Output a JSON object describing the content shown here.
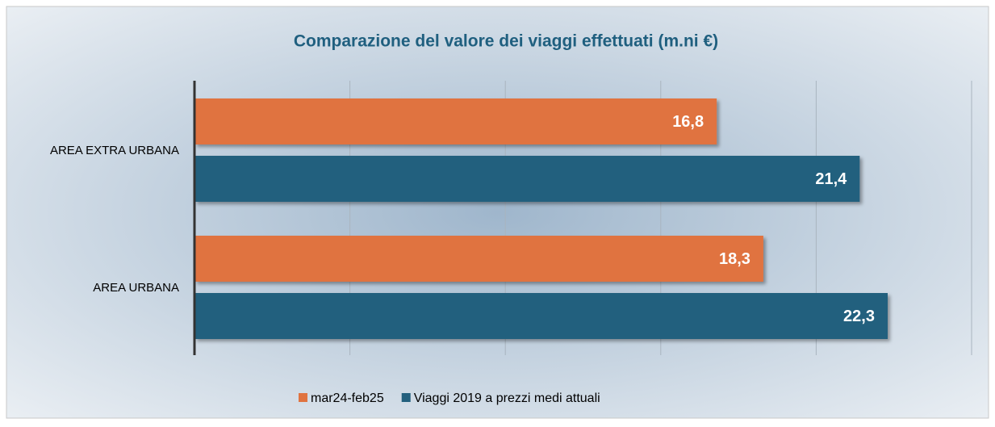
{
  "chart_data": {
    "type": "barh",
    "title": "Comparazione del valore dei viaggi effettuati (m.ni €)",
    "categories": [
      "AREA EXTRA URBANA",
      "AREA URBANA"
    ],
    "series": [
      {
        "name": "mar24-feb25",
        "color": "#e07340",
        "values": [
          16.8,
          18.3
        ],
        "value_labels": [
          "16,8",
          "18,3"
        ]
      },
      {
        "name": "Viaggi 2019 a prezzi medi attuali",
        "color": "#23607e",
        "values": [
          21.4,
          22.3
        ],
        "value_labels": [
          "21,4",
          "22,3"
        ]
      }
    ],
    "xlim": [
      0,
      25
    ],
    "xticks": [
      0,
      5,
      10,
      15,
      20,
      25
    ],
    "grid": true,
    "legend": "bottom"
  }
}
